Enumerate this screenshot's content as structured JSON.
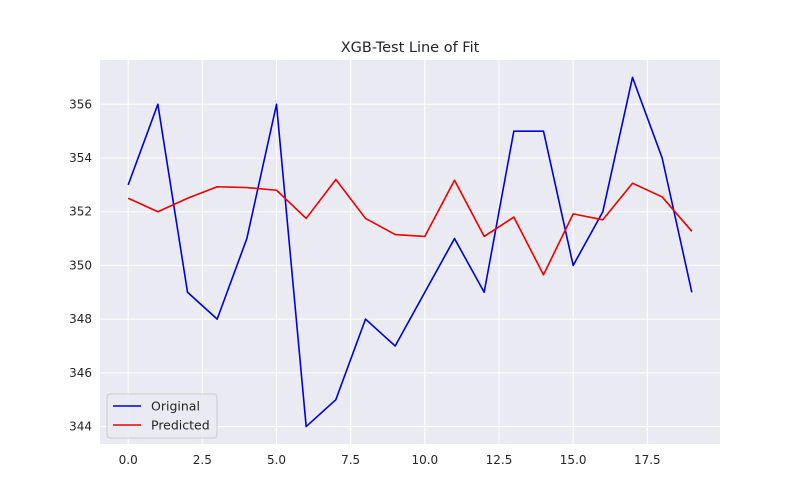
{
  "chart_data": {
    "type": "line",
    "title": "XGB-Test Line of Fit",
    "xlabel": "",
    "ylabel": "",
    "xlim": [
      -0.95,
      19.95
    ],
    "ylim": [
      343.35,
      357.65
    ],
    "xticks": [
      0.0,
      2.5,
      5.0,
      7.5,
      10.0,
      12.5,
      15.0,
      17.5
    ],
    "xtick_labels": [
      "0.0",
      "2.5",
      "5.0",
      "7.5",
      "10.0",
      "12.5",
      "15.0",
      "17.5"
    ],
    "yticks": [
      344,
      346,
      348,
      350,
      352,
      354,
      356
    ],
    "ytick_labels": [
      "344",
      "346",
      "348",
      "350",
      "352",
      "354",
      "356"
    ],
    "grid": true,
    "legend_position": "lower-left",
    "x": [
      0,
      1,
      2,
      3,
      4,
      5,
      6,
      7,
      8,
      9,
      10,
      11,
      12,
      13,
      14,
      15,
      16,
      17,
      18,
      19
    ],
    "series": [
      {
        "name": "Original",
        "color": "#0000dd",
        "values": [
          353,
          356,
          349,
          348,
          351,
          356,
          344,
          345,
          348,
          347,
          349,
          351,
          349,
          355,
          355,
          350,
          352,
          357,
          354,
          349
        ]
      },
      {
        "name": "Predicted",
        "color": "#ee0000",
        "values": [
          352.5,
          352.0,
          352.5,
          352.93,
          352.9,
          352.8,
          351.75,
          353.2,
          351.75,
          351.15,
          351.08,
          353.17,
          351.08,
          351.8,
          349.65,
          351.92,
          351.7,
          353.06,
          352.55,
          351.27
        ]
      }
    ],
    "plot_bg": "#eaeaf2",
    "grid_color": "#ffffff"
  }
}
